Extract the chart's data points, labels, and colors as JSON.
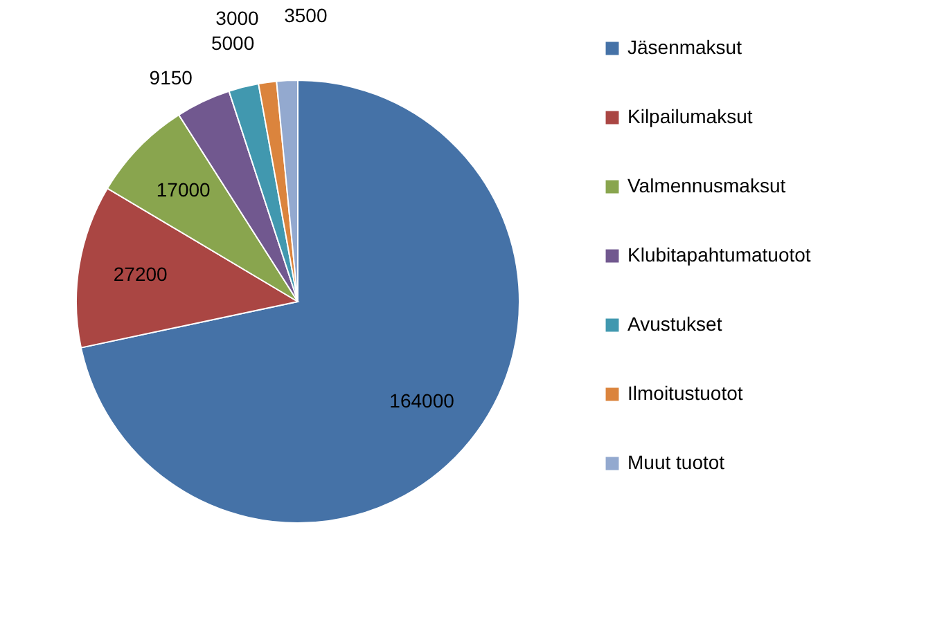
{
  "chart_data": {
    "type": "pie",
    "categories": [
      "Jäsenmaksut",
      "Kilpailumaksut",
      "Valmennusmaksut",
      "Klubitapahtumatuotot",
      "Avustukset",
      "Ilmoitustuotot",
      "Muut tuotot"
    ],
    "values": [
      164000,
      27200,
      17000,
      9150,
      5000,
      3000,
      3500
    ],
    "colors": [
      "#4572a7",
      "#aa4643",
      "#89a54e",
      "#71588f",
      "#4198af",
      "#db843d",
      "#93a9cf"
    ],
    "data_labels": true,
    "legend": "right"
  }
}
